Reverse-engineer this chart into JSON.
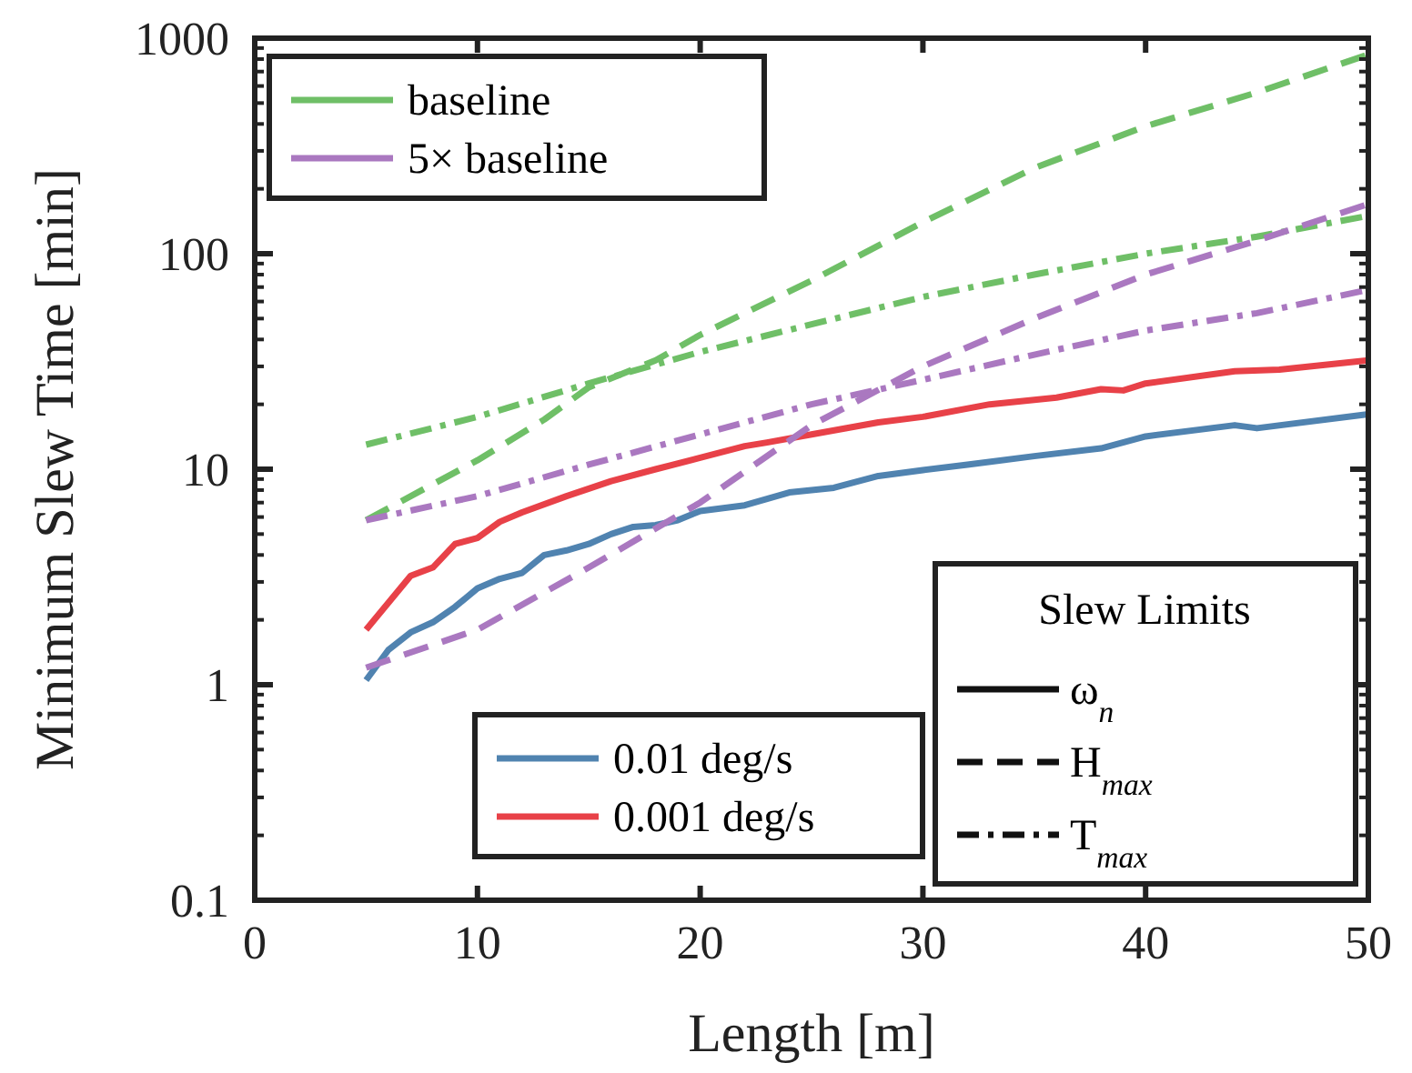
{
  "chart_data": {
    "type": "line",
    "xlabel": "Length [m]",
    "ylabel": "Minimum Slew Time [min]",
    "log": "y",
    "grid": false,
    "legend_title": "Slew Limits",
    "annotations": [
      "ω$_{n}$",
      "H$_{max}$",
      "T$_{max}$"
    ],
    "xlim": [
      0,
      50
    ],
    "xticks": [
      0,
      10,
      20,
      30,
      40,
      50
    ],
    "ylim": [
      0.1,
      1000
    ],
    "yticks": [
      0.1,
      1,
      10,
      100,
      1000
    ],
    "legend": "top left",
    "series": [
      {
        "name": "0.01 deg/s",
        "color": "#5083b0",
        "line_style": "solid",
        "x": [
          5,
          6,
          7,
          8,
          9,
          10,
          11,
          12,
          13,
          14,
          15,
          16,
          17,
          18,
          19,
          20,
          22,
          24,
          26,
          28,
          30,
          32,
          35,
          38,
          40,
          44,
          45,
          50
        ],
        "values": [
          1.05,
          1.45,
          1.75,
          1.95,
          2.3,
          2.8,
          3.1,
          3.3,
          4.0,
          4.2,
          4.5,
          5.0,
          5.4,
          5.5,
          5.8,
          6.4,
          6.8,
          7.8,
          8.2,
          9.3,
          9.9,
          10.5,
          11.5,
          12.5,
          14.2,
          16,
          15.5,
          18
        ]
      },
      {
        "name": "0.001 deg/s",
        "color": "#e84148",
        "line_style": "solid",
        "x": [
          5,
          7,
          8,
          9,
          10,
          11,
          12,
          14,
          16,
          18,
          20,
          22,
          23,
          25,
          28,
          30,
          33,
          36,
          38,
          39,
          40,
          44,
          46,
          50
        ],
        "values": [
          1.8,
          3.2,
          3.5,
          4.5,
          4.8,
          5.7,
          6.3,
          7.5,
          8.8,
          10,
          11.3,
          12.8,
          13.3,
          14.5,
          16.5,
          17.5,
          20,
          21.5,
          23.5,
          23.2,
          25,
          28.5,
          29,
          32
        ]
      },
      {
        "name": "baseline",
        "color": "#6fbf67",
        "line_style": "dashed",
        "x": [
          5,
          10,
          13,
          15,
          18,
          20,
          25,
          30,
          35,
          40,
          45,
          50
        ],
        "values": [
          5.8,
          11,
          17,
          24,
          32,
          42,
          75,
          140,
          250,
          390,
          560,
          840
        ]
      },
      {
        "color": "#6fbf67",
        "line_style": "dashdot",
        "x": [
          5,
          10,
          15,
          20,
          25,
          30,
          35,
          40,
          45,
          50
        ],
        "values": [
          13,
          17.5,
          25,
          35,
          47,
          63,
          80,
          100,
          120,
          150
        ]
      },
      {
        "name": "5× baseline",
        "color": "#aa78c0",
        "line_style": "dashed",
        "x": [
          5,
          10,
          15,
          20,
          25,
          30,
          35,
          40,
          45,
          50
        ],
        "values": [
          1.2,
          1.8,
          3.5,
          7,
          16,
          30,
          50,
          80,
          115,
          170
        ]
      },
      {
        "color": "#aa78c0",
        "line_style": "dashdot",
        "x": [
          5,
          10,
          15,
          20,
          25,
          30,
          35,
          40,
          45,
          50
        ],
        "values": [
          5.8,
          7.5,
          10.5,
          14.5,
          20,
          26,
          34,
          44,
          53,
          68
        ]
      }
    ]
  }
}
